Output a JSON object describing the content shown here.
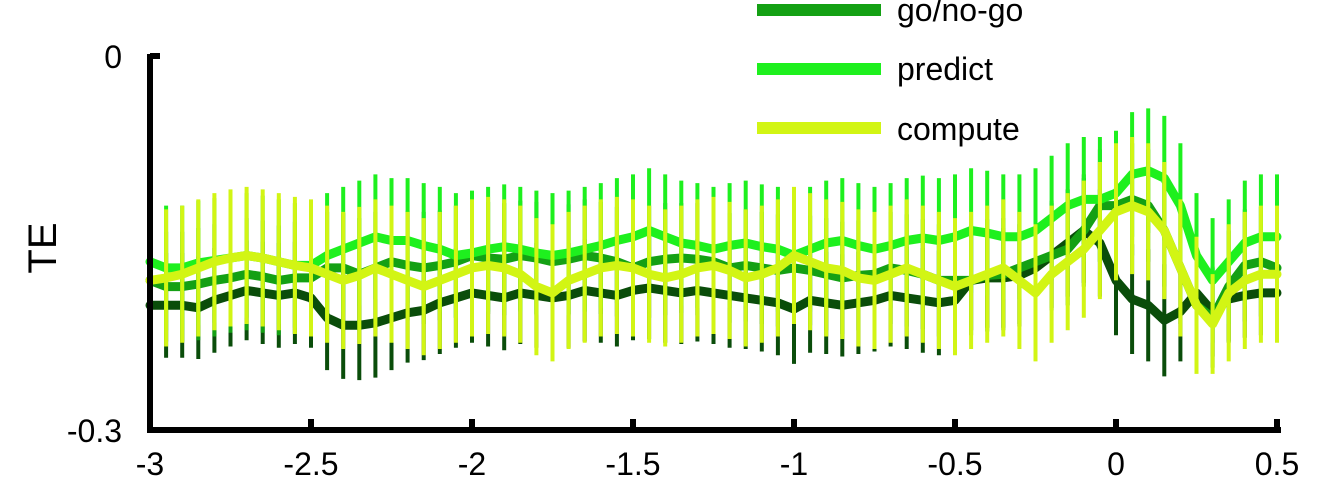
{
  "chart_data": {
    "type": "line",
    "title": "",
    "xlabel": "",
    "ylabel": "TE",
    "xlim": [
      -3,
      0.5
    ],
    "ylim": [
      -0.3,
      0
    ],
    "xticks": [
      {
        "value": -3,
        "label": "-3"
      },
      {
        "value": -2.5,
        "label": "-2.5"
      },
      {
        "value": -2,
        "label": "-2"
      },
      {
        "value": -1.5,
        "label": "-1.5"
      },
      {
        "value": -1,
        "label": "-1"
      },
      {
        "value": -0.5,
        "label": "-0.5"
      },
      {
        "value": 0,
        "label": "0"
      },
      {
        "value": 0.5,
        "label": "0.5"
      }
    ],
    "yticks": [
      {
        "value": 0,
        "label": "0"
      },
      {
        "value": -0.3,
        "label": "-0.3"
      }
    ],
    "grid": false,
    "legend_position": "top-center",
    "colors": {
      "dark_series": "#0a4d0a",
      "go_nogo": "#14a014",
      "predict": "#1ef01e",
      "compute": "#d2f514"
    },
    "x": [
      -3,
      -2.95,
      -2.9,
      -2.85,
      -2.8,
      -2.75,
      -2.7,
      -2.65,
      -2.6,
      -2.55,
      -2.5,
      -2.45,
      -2.4,
      -2.35,
      -2.3,
      -2.25,
      -2.2,
      -2.15,
      -2.1,
      -2.05,
      -2,
      -1.95,
      -1.9,
      -1.85,
      -1.8,
      -1.75,
      -1.7,
      -1.65,
      -1.6,
      -1.55,
      -1.5,
      -1.45,
      -1.4,
      -1.35,
      -1.3,
      -1.25,
      -1.2,
      -1.15,
      -1.1,
      -1.05,
      -1,
      -0.95,
      -0.9,
      -0.85,
      -0.8,
      -0.75,
      -0.7,
      -0.65,
      -0.6,
      -0.55,
      -0.5,
      -0.45,
      -0.4,
      -0.35,
      -0.3,
      -0.25,
      -0.2,
      -0.15,
      -0.1,
      -0.05,
      0,
      0.05,
      0.1,
      0.15,
      0.2,
      0.25,
      0.3,
      0.35,
      0.4,
      0.45,
      0.5
    ],
    "series": [
      {
        "color_key": "dark_series",
        "values": [
          -0.2,
          -0.2,
          -0.2,
          -0.202,
          -0.196,
          -0.192,
          -0.188,
          -0.19,
          -0.192,
          -0.19,
          -0.194,
          -0.21,
          -0.216,
          -0.216,
          -0.214,
          -0.21,
          -0.206,
          -0.204,
          -0.198,
          -0.194,
          -0.19,
          -0.192,
          -0.194,
          -0.19,
          -0.192,
          -0.194,
          -0.192,
          -0.188,
          -0.19,
          -0.192,
          -0.188,
          -0.186,
          -0.188,
          -0.19,
          -0.188,
          -0.19,
          -0.192,
          -0.194,
          -0.196,
          -0.198,
          -0.203,
          -0.196,
          -0.198,
          -0.2,
          -0.198,
          -0.196,
          -0.192,
          -0.194,
          -0.196,
          -0.198,
          -0.196,
          -0.18,
          -0.178,
          -0.178,
          -0.176,
          -0.17,
          -0.16,
          -0.15,
          -0.14,
          -0.15,
          -0.18,
          -0.195,
          -0.2,
          -0.212,
          -0.205,
          -0.19,
          -0.205,
          -0.195,
          -0.192,
          -0.19,
          -0.19
        ],
        "errors": [
          0.04,
          0.042,
          0.042,
          0.041,
          0.042,
          0.041,
          0.04,
          0.041,
          0.042,
          0.041,
          0.04,
          0.042,
          0.043,
          0.044,
          0.044,
          0.042,
          0.04,
          0.04,
          0.041,
          0.04,
          0.04,
          0.041,
          0.042,
          0.041,
          0.042,
          0.041,
          0.042,
          0.041,
          0.04,
          0.041,
          0.04,
          0.041,
          0.042,
          0.041,
          0.041,
          0.041,
          0.042,
          0.041,
          0.041,
          0.042,
          0.044,
          0.042,
          0.041,
          0.041,
          0.041,
          0.041,
          0.041,
          0.041,
          0.042,
          0.042,
          0.042,
          0.04,
          0.04,
          0.04,
          0.041,
          0.042,
          0.042,
          0.043,
          0.042,
          0.043,
          0.044,
          0.044,
          0.045,
          0.045,
          0.04,
          0.034,
          0.036,
          0.034,
          0.034,
          0.034,
          0.034
        ]
      },
      {
        "name": "go/no-go",
        "color_key": "go_nogo",
        "values": [
          -0.18,
          -0.185,
          -0.185,
          -0.183,
          -0.18,
          -0.178,
          -0.175,
          -0.177,
          -0.18,
          -0.178,
          -0.178,
          -0.17,
          -0.17,
          -0.175,
          -0.17,
          -0.165,
          -0.168,
          -0.17,
          -0.168,
          -0.165,
          -0.16,
          -0.162,
          -0.163,
          -0.16,
          -0.162,
          -0.165,
          -0.163,
          -0.16,
          -0.162,
          -0.165,
          -0.17,
          -0.165,
          -0.163,
          -0.162,
          -0.163,
          -0.165,
          -0.17,
          -0.168,
          -0.17,
          -0.172,
          -0.17,
          -0.172,
          -0.175,
          -0.178,
          -0.176,
          -0.175,
          -0.17,
          -0.172,
          -0.175,
          -0.18,
          -0.18,
          -0.18,
          -0.176,
          -0.175,
          -0.17,
          -0.165,
          -0.16,
          -0.155,
          -0.14,
          -0.12,
          -0.12,
          -0.115,
          -0.12,
          -0.14,
          -0.17,
          -0.2,
          -0.21,
          -0.185,
          -0.168,
          -0.165,
          -0.17
        ],
        "errors": [
          0.045,
          0.044,
          0.044,
          0.045,
          0.045,
          0.044,
          0.045,
          0.045,
          0.044,
          0.045,
          0.045,
          0.045,
          0.044,
          0.045,
          0.045,
          0.045,
          0.044,
          0.045,
          0.044,
          0.045,
          0.044,
          0.045,
          0.045,
          0.044,
          0.045,
          0.045,
          0.044,
          0.045,
          0.045,
          0.044,
          0.045,
          0.045,
          0.045,
          0.044,
          0.045,
          0.045,
          0.044,
          0.045,
          0.045,
          0.045,
          0.045,
          0.044,
          0.045,
          0.045,
          0.044,
          0.045,
          0.045,
          0.045,
          0.044,
          0.045,
          0.045,
          0.044,
          0.045,
          0.045,
          0.045,
          0.045,
          0.044,
          0.045,
          0.045,
          0.045,
          0.045,
          0.045,
          0.045,
          0.045,
          0.045,
          0.045,
          0.04,
          0.045,
          0.045,
          0.044,
          0.045
        ]
      },
      {
        "name": "predict",
        "color_key": "predict",
        "values": [
          -0.165,
          -0.17,
          -0.17,
          -0.166,
          -0.164,
          -0.162,
          -0.16,
          -0.162,
          -0.165,
          -0.168,
          -0.168,
          -0.16,
          -0.155,
          -0.15,
          -0.145,
          -0.148,
          -0.148,
          -0.152,
          -0.155,
          -0.16,
          -0.158,
          -0.155,
          -0.153,
          -0.155,
          -0.158,
          -0.16,
          -0.158,
          -0.155,
          -0.152,
          -0.148,
          -0.145,
          -0.14,
          -0.145,
          -0.15,
          -0.152,
          -0.155,
          -0.152,
          -0.15,
          -0.153,
          -0.155,
          -0.16,
          -0.155,
          -0.15,
          -0.148,
          -0.152,
          -0.155,
          -0.152,
          -0.148,
          -0.146,
          -0.148,
          -0.145,
          -0.14,
          -0.142,
          -0.145,
          -0.145,
          -0.14,
          -0.13,
          -0.12,
          -0.115,
          -0.115,
          -0.11,
          -0.095,
          -0.092,
          -0.098,
          -0.12,
          -0.16,
          -0.18,
          -0.165,
          -0.15,
          -0.145,
          -0.145
        ],
        "errors": [
          0.05,
          0.05,
          0.05,
          0.05,
          0.05,
          0.05,
          0.05,
          0.05,
          0.05,
          0.05,
          0.05,
          0.05,
          0.05,
          0.05,
          0.05,
          0.05,
          0.05,
          0.05,
          0.05,
          0.05,
          0.05,
          0.05,
          0.05,
          0.05,
          0.05,
          0.05,
          0.05,
          0.05,
          0.05,
          0.05,
          0.05,
          0.05,
          0.05,
          0.05,
          0.05,
          0.05,
          0.05,
          0.05,
          0.05,
          0.05,
          0.05,
          0.05,
          0.05,
          0.05,
          0.05,
          0.05,
          0.05,
          0.05,
          0.05,
          0.05,
          0.05,
          0.05,
          0.05,
          0.05,
          0.05,
          0.05,
          0.05,
          0.05,
          0.05,
          0.05,
          0.05,
          0.05,
          0.05,
          0.05,
          0.05,
          0.05,
          0.05,
          0.05,
          0.05,
          0.05,
          0.05
        ]
      },
      {
        "name": "compute",
        "color_key": "compute",
        "values": [
          -0.18,
          -0.178,
          -0.175,
          -0.17,
          -0.165,
          -0.162,
          -0.16,
          -0.162,
          -0.165,
          -0.168,
          -0.17,
          -0.175,
          -0.18,
          -0.176,
          -0.17,
          -0.175,
          -0.18,
          -0.185,
          -0.18,
          -0.175,
          -0.17,
          -0.168,
          -0.17,
          -0.175,
          -0.185,
          -0.19,
          -0.18,
          -0.175,
          -0.17,
          -0.168,
          -0.17,
          -0.175,
          -0.178,
          -0.175,
          -0.17,
          -0.168,
          -0.172,
          -0.178,
          -0.175,
          -0.17,
          -0.16,
          -0.165,
          -0.17,
          -0.172,
          -0.178,
          -0.18,
          -0.175,
          -0.17,
          -0.175,
          -0.18,
          -0.185,
          -0.18,
          -0.175,
          -0.17,
          -0.18,
          -0.19,
          -0.175,
          -0.165,
          -0.155,
          -0.14,
          -0.125,
          -0.12,
          -0.125,
          -0.14,
          -0.17,
          -0.2,
          -0.215,
          -0.19,
          -0.18,
          -0.175,
          -0.175
        ],
        "errors": [
          0.055,
          0.055,
          0.055,
          0.055,
          0.055,
          0.055,
          0.055,
          0.055,
          0.055,
          0.055,
          0.055,
          0.055,
          0.055,
          0.055,
          0.055,
          0.055,
          0.055,
          0.055,
          0.055,
          0.055,
          0.055,
          0.055,
          0.055,
          0.055,
          0.055,
          0.055,
          0.055,
          0.055,
          0.055,
          0.055,
          0.055,
          0.055,
          0.055,
          0.055,
          0.055,
          0.055,
          0.055,
          0.055,
          0.055,
          0.055,
          0.055,
          0.055,
          0.055,
          0.055,
          0.055,
          0.055,
          0.055,
          0.055,
          0.055,
          0.055,
          0.055,
          0.055,
          0.055,
          0.055,
          0.055,
          0.055,
          0.055,
          0.055,
          0.055,
          0.055,
          0.055,
          0.055,
          0.055,
          0.055,
          0.055,
          0.055,
          0.04,
          0.055,
          0.055,
          0.055,
          0.055
        ]
      }
    ]
  }
}
